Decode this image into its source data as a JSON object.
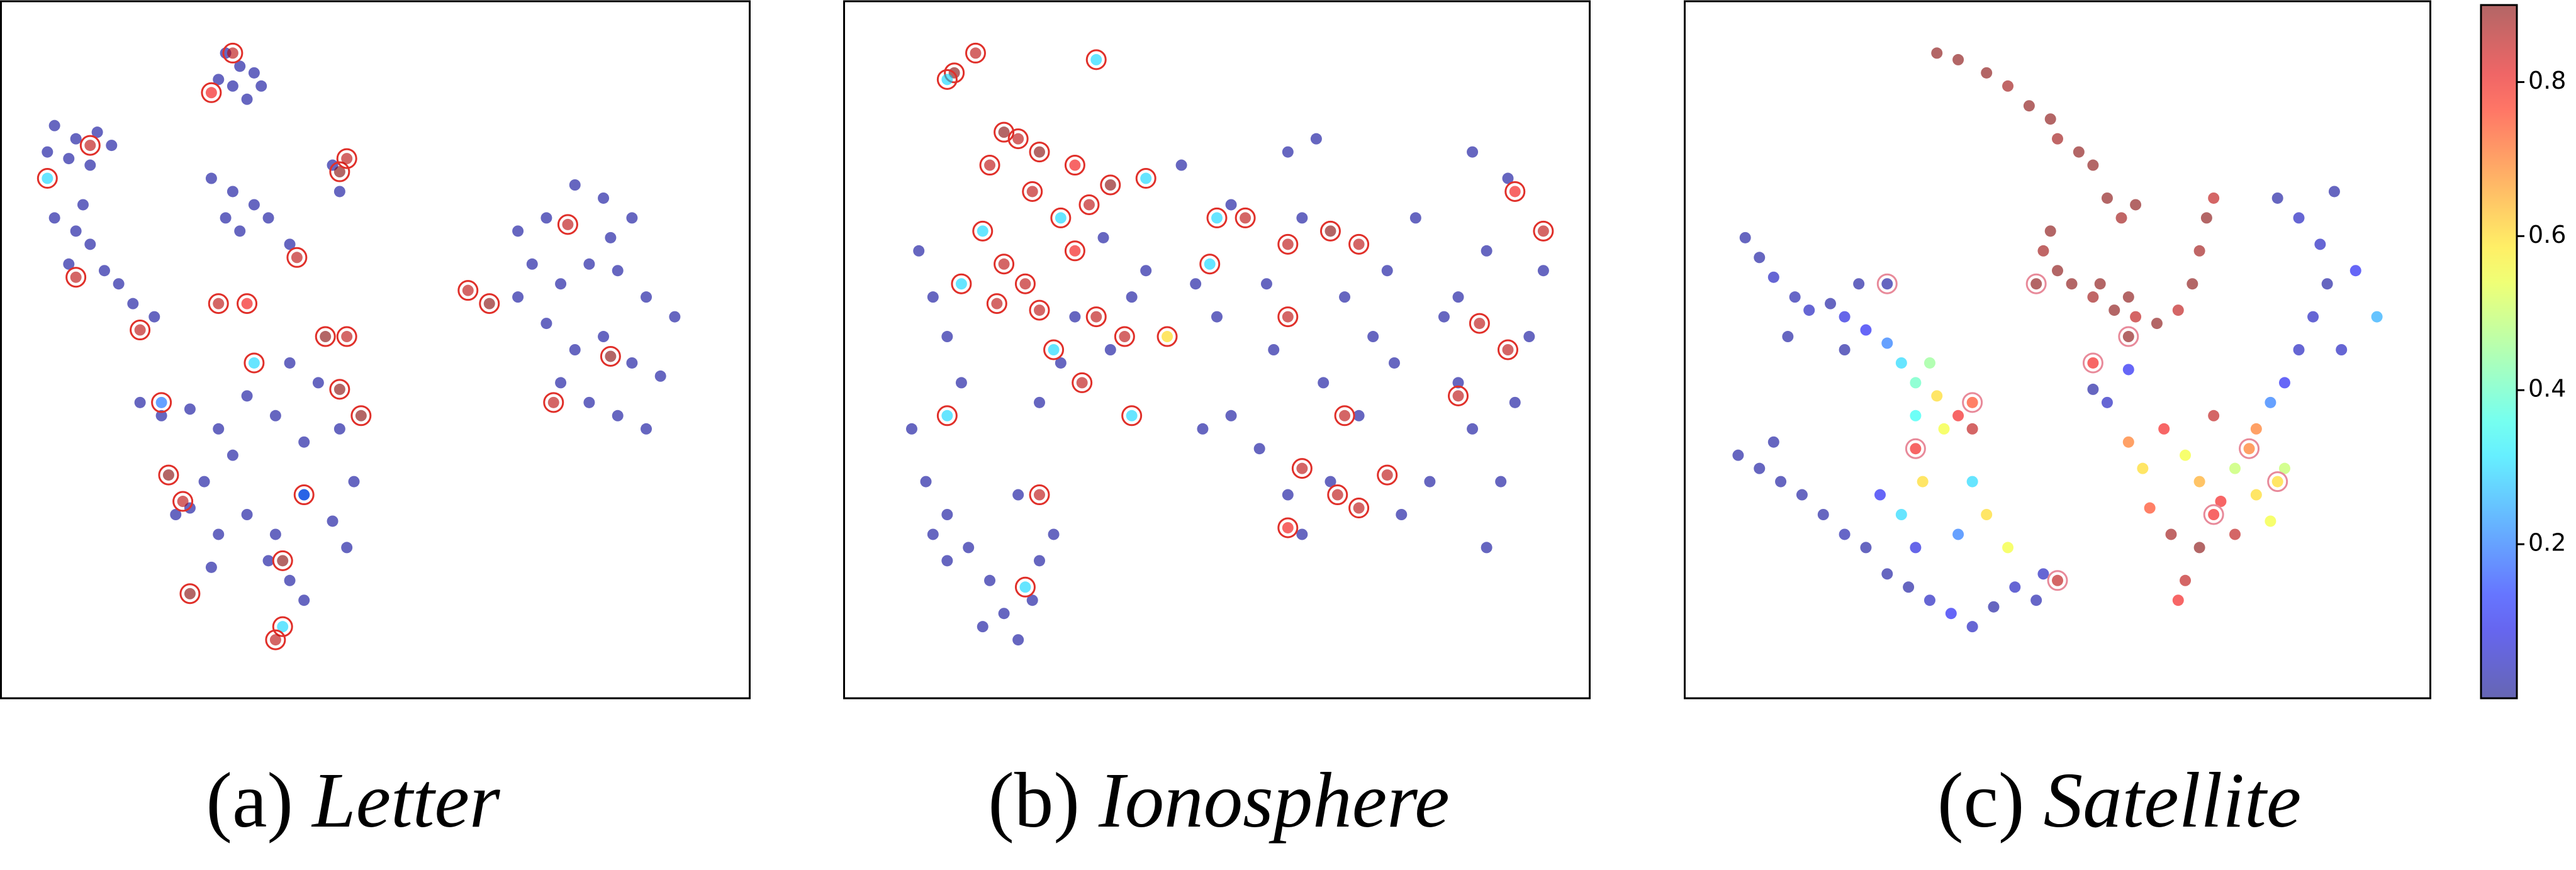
{
  "chart_data": [
    {
      "type": "scatter",
      "caption_prefix": "(a)",
      "title": "Letter",
      "xlim": [
        0,
        100
      ],
      "ylim": [
        0,
        100
      ],
      "series": [
        {
          "marker": "dot",
          "x": [
            29,
            31,
            33,
            30,
            34,
            32,
            28,
            5,
            8,
            11,
            13,
            7,
            10,
            4,
            5,
            8,
            10,
            7,
            12,
            14,
            16,
            19,
            9,
            27,
            30,
            33,
            35,
            29,
            31,
            38,
            44,
            45,
            70,
            74,
            78,
            82,
            86,
            72,
            76,
            80,
            84,
            88,
            92,
            74,
            78,
            82,
            86,
            90,
            76,
            80,
            84,
            88,
            70,
            83,
            17,
            20,
            24,
            28,
            32,
            36,
            40,
            45,
            30,
            26,
            24,
            28,
            32,
            36,
            40,
            44,
            46,
            38,
            40,
            35,
            27,
            22,
            47,
            42,
            38
          ],
          "y": [
            95,
            93,
            92,
            90,
            90,
            88,
            91,
            84,
            82,
            83,
            81,
            79,
            78,
            80,
            70,
            68,
            66,
            63,
            62,
            60,
            57,
            55,
            72,
            76,
            74,
            72,
            70,
            70,
            68,
            66,
            78,
            74,
            68,
            70,
            75,
            73,
            70,
            63,
            60,
            63,
            62,
            58,
            55,
            54,
            50,
            52,
            48,
            46,
            45,
            42,
            40,
            38,
            58,
            67,
            42,
            40,
            41,
            38,
            43,
            40,
            36,
            38,
            34,
            30,
            26,
            22,
            25,
            22,
            28,
            24,
            20,
            15,
            12,
            18,
            17,
            25,
            30,
            45,
            48
          ],
          "values": [
            0.02,
            0.02,
            0.02,
            0.02,
            0.02,
            0.02,
            0.02,
            0.02,
            0.02,
            0.02,
            0.02,
            0.02,
            0.02,
            0.02,
            0.02,
            0.02,
            0.02,
            0.02,
            0.02,
            0.02,
            0.02,
            0.02,
            0.02,
            0.02,
            0.02,
            0.02,
            0.02,
            0.02,
            0.02,
            0.02,
            0.02,
            0.02,
            0.02,
            0.02,
            0.02,
            0.02,
            0.02,
            0.02,
            0.02,
            0.02,
            0.02,
            0.02,
            0.02,
            0.02,
            0.02,
            0.02,
            0.02,
            0.02,
            0.02,
            0.02,
            0.02,
            0.02,
            0.02,
            0.02,
            0.02,
            0.02,
            0.02,
            0.02,
            0.02,
            0.02,
            0.02,
            0.02,
            0.02,
            0.02,
            0.02,
            0.02,
            0.02,
            0.02,
            0.02,
            0.02,
            0.02,
            0.02,
            0.02,
            0.02,
            0.02,
            0.02,
            0.02,
            0.02,
            0.02
          ]
        },
        {
          "marker": "ring",
          "color": "#e0302a",
          "x": [
            30,
            27,
            10,
            4,
            8,
            17,
            28,
            32,
            39,
            45,
            46,
            43,
            46,
            45,
            48,
            33,
            20,
            23,
            24,
            37,
            37,
            36,
            63,
            66,
            77,
            75,
            83,
            40,
            21
          ],
          "y": [
            95,
            89,
            81,
            76,
            61,
            53,
            57,
            57,
            64,
            77,
            79,
            52,
            52,
            44,
            40,
            48,
            42,
            27,
            13,
            18,
            8,
            6,
            59,
            57,
            69,
            42,
            49,
            28,
            31
          ],
          "values": [
            0.85,
            0.8,
            0.85,
            0.3,
            0.85,
            0.85,
            0.85,
            0.8,
            0.85,
            0.9,
            0.85,
            0.9,
            0.85,
            0.9,
            0.9,
            0.3,
            0.2,
            0.85,
            0.9,
            0.9,
            0.3,
            0.85,
            0.85,
            0.9,
            0.85,
            0.85,
            0.9,
            0.2,
            0.9
          ]
        }
      ]
    },
    {
      "type": "scatter",
      "caption_prefix": "(b)",
      "title": "Ionosphere",
      "xlim": [
        0,
        100
      ],
      "ylim": [
        0,
        100
      ],
      "series": [
        {
          "marker": "dot",
          "x": [
            8,
            10,
            12,
            14,
            7,
            9,
            12,
            15,
            18,
            12,
            10,
            20,
            22,
            17,
            24,
            25,
            27,
            22,
            25,
            28,
            30,
            35,
            38,
            40,
            34,
            45,
            52,
            60,
            64,
            62,
            47,
            50,
            58,
            52,
            48,
            56,
            60,
            62,
            66,
            70,
            72,
            74,
            78,
            82,
            84,
            86,
            80,
            76,
            88,
            90,
            92,
            94,
            96,
            88,
            86,
            91,
            84,
            68,
            75,
            65,
            57
          ],
          "y": [
            65,
            58,
            52,
            45,
            38,
            30,
            25,
            20,
            15,
            18,
            22,
            10,
            6,
            8,
            12,
            18,
            22,
            28,
            42,
            48,
            55,
            50,
            58,
            62,
            67,
            78,
            72,
            80,
            82,
            70,
            60,
            55,
            50,
            40,
            38,
            35,
            28,
            22,
            30,
            40,
            52,
            62,
            70,
            55,
            45,
            38,
            30,
            25,
            20,
            30,
            42,
            52,
            62,
            65,
            80,
            76,
            58,
            58,
            48,
            45,
            60
          ],
          "values": [
            0.02,
            0.02,
            0.02,
            0.02,
            0.02,
            0.02,
            0.02,
            0.02,
            0.02,
            0.02,
            0.02,
            0.02,
            0.02,
            0.02,
            0.02,
            0.02,
            0.02,
            0.02,
            0.02,
            0.02,
            0.02,
            0.02,
            0.02,
            0.02,
            0.02,
            0.02,
            0.02,
            0.02,
            0.02,
            0.02,
            0.02,
            0.02,
            0.02,
            0.02,
            0.02,
            0.02,
            0.02,
            0.02,
            0.02,
            0.02,
            0.02,
            0.02,
            0.02,
            0.02,
            0.02,
            0.02,
            0.02,
            0.02,
            0.02,
            0.02,
            0.02,
            0.02,
            0.02,
            0.02,
            0.02,
            0.02,
            0.02,
            0.02,
            0.02,
            0.02,
            0.02
          ]
        },
        {
          "marker": "ring",
          "color": "#e0302a",
          "x": [
            13,
            12,
            16,
            33,
            20,
            22,
            25,
            30,
            18,
            24,
            28,
            32,
            35,
            17,
            20,
            23,
            14,
            19,
            25,
            30,
            33,
            37,
            27,
            31,
            38,
            12,
            25,
            23,
            40,
            50,
            54,
            60,
            66,
            70,
            49,
            60,
            68,
            62,
            67,
            70,
            74,
            60,
            84,
            87,
            91,
            96,
            92,
            43
          ],
          "y": [
            92,
            91,
            95,
            94,
            83,
            82,
            80,
            78,
            78,
            74,
            70,
            72,
            75,
            68,
            63,
            60,
            60,
            57,
            56,
            65,
            55,
            52,
            50,
            45,
            40,
            40,
            28,
            14,
            76,
            70,
            70,
            66,
            68,
            66,
            63,
            55,
            40,
            32,
            28,
            26,
            31,
            23,
            43,
            54,
            50,
            68,
            74,
            52
          ],
          "values": [
            0.9,
            0.3,
            0.85,
            0.3,
            0.9,
            0.85,
            0.9,
            0.8,
            0.85,
            0.85,
            0.3,
            0.85,
            0.9,
            0.3,
            0.85,
            0.85,
            0.3,
            0.85,
            0.85,
            0.8,
            0.85,
            0.85,
            0.3,
            0.85,
            0.3,
            0.3,
            0.85,
            0.3,
            0.3,
            0.3,
            0.85,
            0.85,
            0.9,
            0.85,
            0.3,
            0.85,
            0.85,
            0.85,
            0.85,
            0.85,
            0.85,
            0.8,
            0.85,
            0.85,
            0.85,
            0.85,
            0.8,
            0.6
          ]
        }
      ]
    },
    {
      "type": "scatter",
      "caption_prefix": "(c)",
      "title": "Satellite",
      "xlim": [
        0,
        100
      ],
      "ylim": [
        0,
        100
      ],
      "series": [
        {
          "marker": "dot",
          "x": [
            33,
            36,
            40,
            43,
            46,
            49,
            50,
            53,
            55,
            57,
            59,
            61,
            49,
            48,
            50,
            52,
            55,
            58,
            61,
            64,
            67,
            69,
            70,
            71,
            72,
            56,
            60,
            6,
            8,
            10,
            13,
            15,
            18,
            20,
            23,
            26,
            28,
            30,
            33,
            36,
            38,
            34,
            30,
            32,
            22,
            12,
            20,
            81,
            84,
            87,
            88,
            86,
            84,
            82,
            80,
            92,
            95,
            90,
            89,
            55,
            57,
            60,
            60,
            62,
            65,
            68,
            70,
            73,
            75,
            78,
            75,
            70,
            66,
            63,
            80,
            82,
            78,
            72,
            68,
            67,
            5,
            8,
            11,
            14,
            17,
            20,
            23,
            26,
            29,
            32,
            35,
            38,
            41,
            44,
            47,
            48,
            25,
            28,
            31,
            30,
            36,
            40,
            43,
            38,
            10
          ],
          "y": [
            95,
            94,
            92,
            90,
            87,
            85,
            82,
            80,
            78,
            73,
            70,
            72,
            68,
            65,
            62,
            60,
            58,
            56,
            55,
            54,
            56,
            60,
            65,
            70,
            73,
            60,
            58,
            67,
            64,
            61,
            58,
            56,
            57,
            55,
            53,
            51,
            48,
            45,
            43,
            40,
            38,
            38,
            40,
            48,
            60,
            52,
            50,
            73,
            70,
            66,
            60,
            55,
            50,
            45,
            42,
            62,
            55,
            50,
            74,
            44,
            42,
            47,
            36,
            32,
            38,
            34,
            30,
            27,
            32,
            28,
            22,
            20,
            22,
            26,
            24,
            32,
            38,
            40,
            15,
            12,
            34,
            32,
            30,
            28,
            25,
            22,
            20,
            16,
            14,
            12,
            10,
            8,
            11,
            14,
            12,
            16,
            28,
            25,
            30,
            20,
            22,
            25,
            20,
            30,
            36
          ],
          "values": [
            0.9,
            0.9,
            0.9,
            0.88,
            0.9,
            0.9,
            0.88,
            0.9,
            0.9,
            0.9,
            0.88,
            0.9,
            0.9,
            0.88,
            0.9,
            0.9,
            0.88,
            0.9,
            0.85,
            0.9,
            0.85,
            0.9,
            0.88,
            0.9,
            0.85,
            0.9,
            0.9,
            0.02,
            0.02,
            0.05,
            0.03,
            0.05,
            0.02,
            0.08,
            0.1,
            0.2,
            0.3,
            0.4,
            0.6,
            0.8,
            0.85,
            0.55,
            0.35,
            0.45,
            0.02,
            0.02,
            0.02,
            0.02,
            0.05,
            0.05,
            0.02,
            0.05,
            0.05,
            0.1,
            0.2,
            0.1,
            0.25,
            0.05,
            0.02,
            0.02,
            0.05,
            0.1,
            0.7,
            0.6,
            0.8,
            0.55,
            0.65,
            0.8,
            0.5,
            0.6,
            0.85,
            0.9,
            0.88,
            0.75,
            0.55,
            0.5,
            0.7,
            0.85,
            0.85,
            0.8,
            0.02,
            0.02,
            0.02,
            0.02,
            0.02,
            0.03,
            0.02,
            0.02,
            0.02,
            0.05,
            0.1,
            0.05,
            0.02,
            0.05,
            0.03,
            0.05,
            0.1,
            0.3,
            0.6,
            0.08,
            0.2,
            0.6,
            0.55,
            0.3,
            0.02
          ]
        },
        {
          "marker": "ring",
          "color": "#e88a9a",
          "x": [
            55,
            60,
            77,
            81,
            30,
            50,
            47,
            38,
            72,
            26
          ],
          "y": [
            48,
            52,
            35,
            30,
            35,
            15,
            60,
            42,
            25,
            60
          ],
          "values": [
            0.8,
            0.9,
            0.7,
            0.6,
            0.8,
            0.85,
            0.9,
            0.75,
            0.8,
            0.02
          ]
        }
      ]
    }
  ],
  "colorbar": {
    "clim": [
      0,
      0.9
    ],
    "ticks": [
      0.2,
      0.4,
      0.6,
      0.8
    ]
  }
}
